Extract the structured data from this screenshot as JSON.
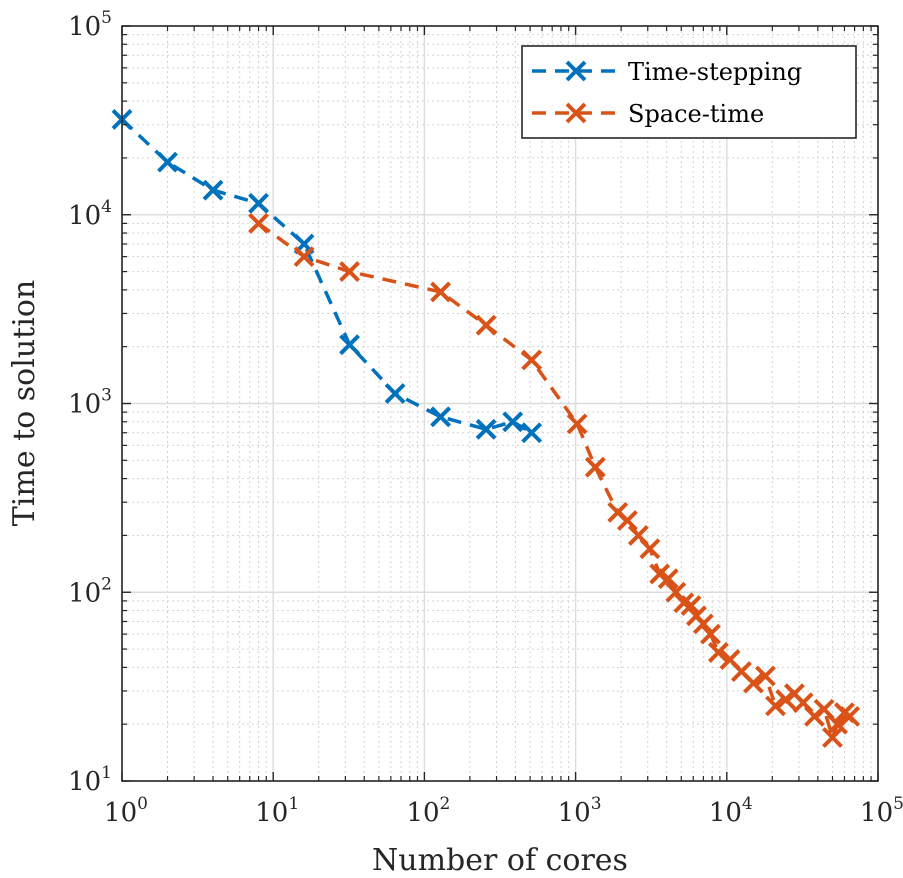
{
  "chart_data": {
    "type": "line",
    "title": "",
    "xlabel": "Number of cores",
    "ylabel": "Time to solution",
    "xscale": "log",
    "yscale": "log",
    "xlim": [
      1,
      100000
    ],
    "ylim": [
      10,
      100000
    ],
    "grid": true,
    "minor_grid": true,
    "x_ticks": [
      {
        "base": "10",
        "exp": "0",
        "value": 1
      },
      {
        "base": "10",
        "exp": "1",
        "value": 10
      },
      {
        "base": "10",
        "exp": "2",
        "value": 100
      },
      {
        "base": "10",
        "exp": "3",
        "value": 1000
      },
      {
        "base": "10",
        "exp": "4",
        "value": 10000
      },
      {
        "base": "10",
        "exp": "5",
        "value": 100000
      }
    ],
    "y_ticks": [
      {
        "base": "10",
        "exp": "1",
        "value": 10
      },
      {
        "base": "10",
        "exp": "2",
        "value": 100
      },
      {
        "base": "10",
        "exp": "3",
        "value": 1000
      },
      {
        "base": "10",
        "exp": "4",
        "value": 10000
      },
      {
        "base": "10",
        "exp": "5",
        "value": 100000
      }
    ],
    "legend_position": "top-right",
    "series": [
      {
        "name": "Time-stepping",
        "color": "#0072BD",
        "line_style": "dashed",
        "marker": "x",
        "x": [
          1,
          2,
          4,
          8,
          16,
          32,
          64,
          128,
          256,
          384,
          512
        ],
        "y": [
          32000,
          19000,
          13500,
          11500,
          7000,
          2050,
          1130,
          850,
          730,
          800,
          700
        ]
      },
      {
        "name": "Space-time",
        "color": "#D95319",
        "line_style": "dashed",
        "marker": "x",
        "x": [
          8,
          16,
          32,
          128,
          256,
          512,
          1024,
          1350,
          1900,
          2200,
          2600,
          3100,
          3600,
          4100,
          4600,
          5200,
          5800,
          6300,
          7000,
          7800,
          8800,
          10500,
          12500,
          15000,
          18000,
          21000,
          24500,
          28000,
          32000,
          38000,
          44000,
          50000,
          54000,
          60000,
          65000
        ],
        "y": [
          9000,
          6000,
          5000,
          3900,
          2600,
          1700,
          780,
          460,
          265,
          240,
          200,
          170,
          125,
          118,
          100,
          88,
          85,
          75,
          68,
          60,
          48,
          44,
          38,
          33,
          36,
          25,
          27,
          29,
          26,
          22,
          24,
          17,
          20,
          23,
          22
        ]
      }
    ]
  }
}
